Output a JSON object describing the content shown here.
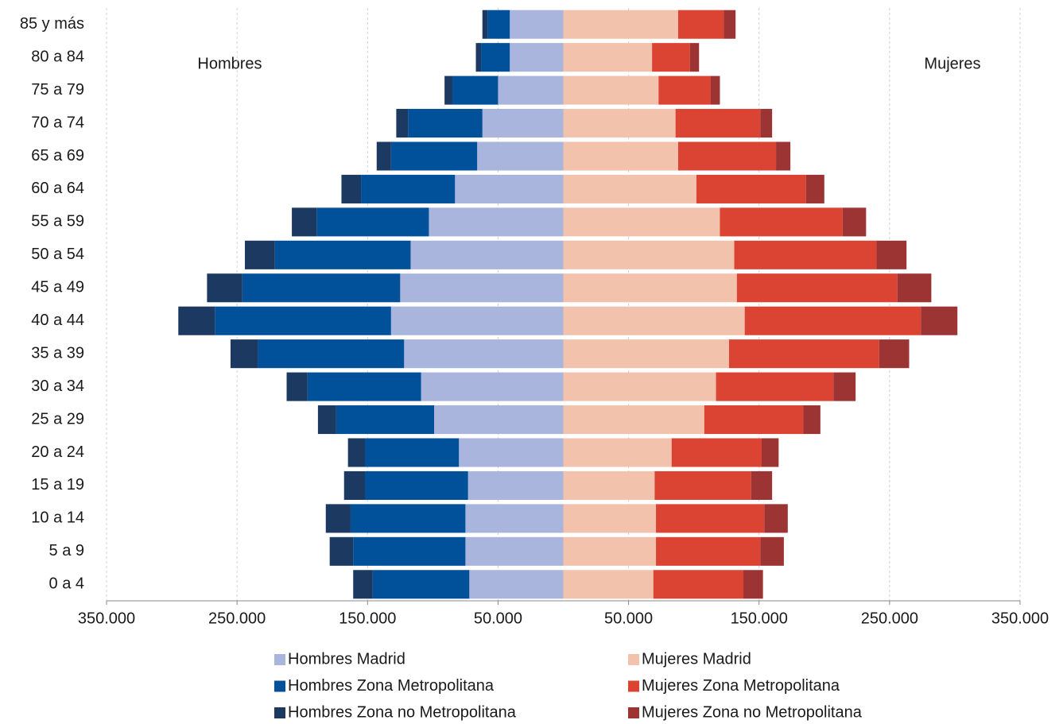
{
  "chart_data": {
    "type": "pyramid",
    "categories": [
      "85 y más",
      "80 a 84",
      "75 a 79",
      "70 a 74",
      "65 a 69",
      "60 a 64",
      "55 a 59",
      "50 a 54",
      "45 a 49",
      "40 a 44",
      "35 a 39",
      "30 a 34",
      "25 a 29",
      "20 a 24",
      "15 a 19",
      "10 a 14",
      "5 a 9",
      "0 a 4"
    ],
    "annotations": [
      "Hombres",
      "Mujeres"
    ],
    "series": [
      {
        "name": "Hombres Madrid",
        "color": "#a9b5dc",
        "values": [
          -41000,
          -41000,
          -50000,
          -62000,
          -66000,
          -83000,
          -103000,
          -117000,
          -125000,
          -132000,
          -122000,
          -109000,
          -99000,
          -80000,
          -73000,
          -75000,
          -75000,
          -72000
        ]
      },
      {
        "name": "Mujeres Madrid",
        "color": "#f3c2ac",
        "values": [
          88000,
          68000,
          73000,
          86000,
          88000,
          102000,
          120000,
          131000,
          133000,
          139000,
          127000,
          117000,
          108000,
          83000,
          70000,
          71000,
          71000,
          69000
        ]
      },
      {
        "name": "Hombres Zona Metropolitana",
        "color": "#00519a",
        "values": [
          -17000,
          -22000,
          -35000,
          -57000,
          -66000,
          -72000,
          -86000,
          -104000,
          -121000,
          -135000,
          -112000,
          -87000,
          -75000,
          -72000,
          -79000,
          -88000,
          -86000,
          -74000
        ]
      },
      {
        "name": "Mujeres Zona Metropolitana",
        "color": "#db4332",
        "values": [
          35000,
          29000,
          40000,
          65000,
          75000,
          84000,
          94000,
          109000,
          123000,
          135000,
          115000,
          90000,
          76000,
          69000,
          74000,
          83000,
          80000,
          69000
        ]
      },
      {
        "name": "Hombres Zona no Metropolitana",
        "color": "#1c3961",
        "values": [
          -4000,
          -4000,
          -6000,
          -9000,
          -11000,
          -15000,
          -19000,
          -23000,
          -27000,
          -28000,
          -21000,
          -16000,
          -14000,
          -13000,
          -16000,
          -19000,
          -18000,
          -15000
        ]
      },
      {
        "name": "Mujeres Zona no Metropolitana",
        "color": "#9d3434",
        "values": [
          9000,
          7000,
          7000,
          9000,
          11000,
          14000,
          18000,
          23000,
          26000,
          28000,
          23000,
          17000,
          13000,
          13000,
          16000,
          18000,
          18000,
          15000
        ]
      }
    ],
    "xlim": [
      -350000,
      350000
    ],
    "xticks": [
      {
        "value": -350000,
        "label": "350.000"
      },
      {
        "value": -250000,
        "label": "250.000"
      },
      {
        "value": -150000,
        "label": "150.000"
      },
      {
        "value": -50000,
        "label": "50.000"
      },
      {
        "value": 50000,
        "label": "50.000"
      },
      {
        "value": 150000,
        "label": "150.000"
      },
      {
        "value": 250000,
        "label": "250.000"
      },
      {
        "value": 350000,
        "label": "350.000"
      }
    ],
    "grid": true
  }
}
